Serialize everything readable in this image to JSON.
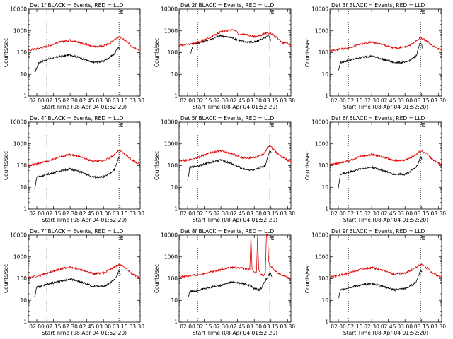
{
  "page": {
    "title": ""
  },
  "common": {
    "subtitle": "BLACK = Events, RED = LLD",
    "xlabel": "Start Time (08-Apr-04 01:52:20)",
    "ylabel": "Counts/sec",
    "x_ticks": [
      "02:00",
      "02:15",
      "02:30",
      "02:45",
      "03:00",
      "03:15",
      "03:30"
    ],
    "y_ticks": [
      "1",
      "10",
      "100",
      "1000",
      "10000"
    ],
    "flag_label": "E",
    "colors": {
      "events": "#000000",
      "lld": "#dd0000",
      "axis": "#000000"
    }
  },
  "chart_data": [
    {
      "type": "line",
      "title": "Det 1f BLACK = Events, RED = LLD",
      "xlabel": "Start Time (08-Apr-04 01:52:20)",
      "ylabel": "Counts/sec",
      "xlim": [
        "01:52:20",
        "03:33:00"
      ],
      "ylim": [
        1,
        10000
      ],
      "y_scale": "log",
      "markers": [
        "02:09:00",
        "03:14:00"
      ],
      "flags": [
        "03:15:00"
      ],
      "series": [
        {
          "name": "Events",
          "color": "#000000",
          "x": [
            "01:58:00",
            "02:02:00",
            "02:10:00",
            "02:20:00",
            "02:30:00",
            "02:40:00",
            "02:50:00",
            "03:00:00",
            "03:05:00",
            "03:10:00",
            "03:12:30",
            "03:13:30",
            "03:14:30"
          ],
          "y": [
            12,
            35,
            50,
            65,
            80,
            55,
            35,
            40,
            60,
            90,
            150,
            180,
            150
          ]
        },
        {
          "name": "LLD",
          "color": "#dd0000",
          "x": [
            "01:52:20",
            "02:00:00",
            "02:10:00",
            "02:20:00",
            "02:30:00",
            "02:40:00",
            "02:50:00",
            "03:00:00",
            "03:05:00",
            "03:10:00",
            "03:14:00",
            "03:20:00",
            "03:25:00",
            "03:33:00"
          ],
          "y": [
            130,
            150,
            200,
            300,
            380,
            280,
            190,
            200,
            260,
            380,
            550,
            350,
            200,
            130
          ]
        }
      ]
    },
    {
      "type": "line",
      "title": "Det 2f BLACK = Events, RED = LLD",
      "xlabel": "Start Time (08-Apr-04 01:52:20)",
      "ylabel": "Counts/sec",
      "xlim": [
        "01:52:20",
        "03:33:00"
      ],
      "ylim": [
        1,
        10000
      ],
      "y_scale": "log",
      "markers": [
        "02:09:00",
        "03:14:00"
      ],
      "flags": [
        "03:15:00"
      ],
      "series": [
        {
          "name": "Events",
          "color": "#000000",
          "x": [
            "02:03:00",
            "02:05:00",
            "02:10:00",
            "02:20:00",
            "02:30:00",
            "02:40:00",
            "02:50:00",
            "03:00:00",
            "03:05:00",
            "03:10:00",
            "03:13:00",
            "03:15:00"
          ],
          "y": [
            100,
            250,
            280,
            400,
            600,
            480,
            320,
            300,
            380,
            500,
            600,
            350
          ]
        },
        {
          "name": "LLD",
          "color": "#dd0000",
          "x": [
            "01:52:20",
            "02:00:00",
            "02:10:00",
            "02:20:00",
            "02:30:00",
            "02:40:00",
            "02:44:00",
            "02:46:00",
            "02:50:00",
            "03:00:00",
            "03:05:00",
            "03:10:00",
            "03:14:00",
            "03:20:00",
            "03:25:00",
            "03:33:00"
          ],
          "y": [
            220,
            240,
            300,
            500,
            900,
            1100,
            1000,
            650,
            700,
            550,
            600,
            750,
            800,
            500,
            300,
            230
          ]
        }
      ]
    },
    {
      "type": "line",
      "title": "Det 3f BLACK = Events, RED = LLD",
      "xlabel": "Start Time (08-Apr-04 01:52:20)",
      "ylabel": "Counts/sec",
      "xlim": [
        "01:52:20",
        "03:33:00"
      ],
      "ylim": [
        1,
        10000
      ],
      "y_scale": "log",
      "markers": [
        "02:09:00",
        "03:14:00"
      ],
      "flags": [
        "03:15:00"
      ],
      "series": [
        {
          "name": "Events",
          "color": "#000000",
          "x": [
            "02:00:00",
            "02:02:00",
            "02:10:00",
            "02:20:00",
            "02:30:00",
            "02:40:00",
            "02:50:00",
            "03:00:00",
            "03:05:00",
            "03:10:00",
            "03:12:00",
            "03:13:30",
            "03:14:30",
            "03:16:00"
          ],
          "y": [
            15,
            35,
            45,
            60,
            70,
            50,
            35,
            35,
            45,
            70,
            150,
            300,
            280,
            140
          ]
        },
        {
          "name": "LLD",
          "color": "#dd0000",
          "x": [
            "01:52:20",
            "02:00:00",
            "02:10:00",
            "02:20:00",
            "02:30:00",
            "02:40:00",
            "02:50:00",
            "03:00:00",
            "03:05:00",
            "03:10:00",
            "03:14:00",
            "03:20:00",
            "03:25:00",
            "03:33:00"
          ],
          "y": [
            120,
            140,
            170,
            240,
            300,
            230,
            160,
            180,
            230,
            330,
            500,
            330,
            200,
            130
          ]
        }
      ]
    },
    {
      "type": "line",
      "title": "Det 4f BLACK = Events, RED = LLD",
      "xlabel": "Start Time (08-Apr-04 01:52:20)",
      "ylabel": "Counts/sec",
      "xlim": [
        "01:52:20",
        "03:33:00"
      ],
      "ylim": [
        1,
        10000
      ],
      "y_scale": "log",
      "markers": [
        "02:09:00",
        "03:14:00"
      ],
      "flags": [
        "03:15:00"
      ],
      "series": [
        {
          "name": "Events",
          "color": "#000000",
          "x": [
            "01:58:00",
            "02:00:00",
            "02:10:00",
            "02:20:00",
            "02:30:00",
            "02:40:00",
            "02:50:00",
            "03:00:00",
            "03:05:00",
            "03:10:00",
            "03:12:30",
            "03:14:00",
            "03:15:00"
          ],
          "y": [
            8,
            30,
            40,
            55,
            70,
            50,
            30,
            30,
            40,
            70,
            150,
            250,
            200
          ]
        },
        {
          "name": "LLD",
          "color": "#dd0000",
          "x": [
            "01:52:20",
            "02:00:00",
            "02:10:00",
            "02:20:00",
            "02:30:00",
            "02:40:00",
            "02:50:00",
            "03:00:00",
            "03:05:00",
            "03:10:00",
            "03:14:00",
            "03:20:00",
            "03:25:00",
            "03:33:00"
          ],
          "y": [
            100,
            120,
            160,
            250,
            320,
            240,
            160,
            170,
            220,
            320,
            500,
            320,
            190,
            110
          ]
        }
      ]
    },
    {
      "type": "line",
      "title": "Det 5f BLACK = Events, RED = LLD",
      "xlabel": "Start Time (08-Apr-04 01:52:20)",
      "ylabel": "Counts/sec",
      "xlim": [
        "01:52:20",
        "03:33:00"
      ],
      "ylim": [
        1,
        10000
      ],
      "y_scale": "log",
      "markers": [
        "02:09:00",
        "03:14:00"
      ],
      "flags": [
        "03:15:00"
      ],
      "series": [
        {
          "name": "Events",
          "color": "#000000",
          "x": [
            "02:00:00",
            "02:02:00",
            "02:10:00",
            "02:20:00",
            "02:30:00",
            "02:40:00",
            "02:50:00",
            "03:00:00",
            "03:05:00",
            "03:10:00",
            "03:12:00",
            "03:14:00",
            "03:15:30"
          ],
          "y": [
            20,
            80,
            100,
            140,
            180,
            120,
            70,
            60,
            80,
            100,
            250,
            500,
            400
          ]
        },
        {
          "name": "LLD",
          "color": "#dd0000",
          "x": [
            "01:52:20",
            "02:00:00",
            "02:10:00",
            "02:20:00",
            "02:30:00",
            "02:40:00",
            "02:50:00",
            "03:00:00",
            "03:05:00",
            "03:10:00",
            "03:12:00",
            "03:14:00",
            "03:20:00",
            "03:25:00",
            "03:33:00"
          ],
          "y": [
            170,
            180,
            240,
            380,
            480,
            350,
            230,
            230,
            280,
            400,
            700,
            850,
            400,
            250,
            150
          ]
        }
      ]
    },
    {
      "type": "line",
      "title": "Det 6f BLACK = Events, RED = LLD",
      "xlabel": "Start Time (08-Apr-04 01:52:20)",
      "ylabel": "Counts/sec",
      "xlim": [
        "01:52:20",
        "03:33:00"
      ],
      "ylim": [
        1,
        10000
      ],
      "y_scale": "log",
      "markers": [
        "02:09:00",
        "03:14:00"
      ],
      "flags": [
        "03:15:00"
      ],
      "series": [
        {
          "name": "Events",
          "color": "#000000",
          "x": [
            "02:00:00",
            "02:02:00",
            "02:10:00",
            "02:20:00",
            "02:30:00",
            "02:40:00",
            "02:50:00",
            "03:00:00",
            "03:05:00",
            "03:10:00",
            "03:12:30",
            "03:14:00",
            "03:15:30"
          ],
          "y": [
            10,
            40,
            50,
            70,
            85,
            60,
            40,
            40,
            55,
            80,
            150,
            250,
            200
          ]
        },
        {
          "name": "LLD",
          "color": "#dd0000",
          "x": [
            "01:52:20",
            "02:00:00",
            "02:10:00",
            "02:20:00",
            "02:30:00",
            "02:40:00",
            "02:50:00",
            "03:00:00",
            "03:05:00",
            "03:10:00",
            "03:14:00",
            "03:20:00",
            "03:25:00",
            "03:33:00"
          ],
          "y": [
            110,
            130,
            170,
            260,
            330,
            250,
            170,
            180,
            230,
            330,
            500,
            320,
            190,
            110
          ]
        }
      ]
    },
    {
      "type": "line",
      "title": "Det 7f BLACK = Events, RED = LLD",
      "xlabel": "Start Time (08-Apr-04 01:52:20)",
      "ylabel": "Counts/sec",
      "xlim": [
        "01:52:20",
        "03:33:00"
      ],
      "ylim": [
        1,
        10000
      ],
      "y_scale": "log",
      "markers": [
        "02:09:00",
        "03:14:00"
      ],
      "flags": [
        "03:15:00"
      ],
      "series": [
        {
          "name": "Events",
          "color": "#000000",
          "x": [
            "01:58:00",
            "02:00:00",
            "02:10:00",
            "02:20:00",
            "02:30:00",
            "02:40:00",
            "02:50:00",
            "03:00:00",
            "03:05:00",
            "03:10:00",
            "03:12:30",
            "03:14:00",
            "03:15:30"
          ],
          "y": [
            15,
            40,
            55,
            75,
            95,
            70,
            45,
            45,
            60,
            90,
            150,
            220,
            150
          ]
        },
        {
          "name": "LLD",
          "color": "#dd0000",
          "x": [
            "01:52:20",
            "02:00:00",
            "02:10:00",
            "02:20:00",
            "02:30:00",
            "02:40:00",
            "02:50:00",
            "03:00:00",
            "03:05:00",
            "03:10:00",
            "03:14:00",
            "03:20:00",
            "03:25:00",
            "03:33:00"
          ],
          "y": [
            110,
            130,
            180,
            270,
            340,
            260,
            170,
            180,
            240,
            340,
            480,
            300,
            170,
            110
          ]
        }
      ]
    },
    {
      "type": "line",
      "title": "Det 8f BLACK = Events, RED = LLD",
      "xlabel": "Start Time (08-Apr-04 01:52:20)",
      "ylabel": "Counts/sec",
      "xlim": [
        "01:52:20",
        "03:33:00"
      ],
      "ylim": [
        1,
        10000
      ],
      "y_scale": "log",
      "markers": [
        "02:09:00",
        "03:14:00"
      ],
      "flags": [
        "03:15:00"
      ],
      "series": [
        {
          "name": "Events",
          "color": "#000000",
          "x": [
            "02:00:00",
            "02:02:00",
            "02:10:00",
            "02:20:00",
            "02:30:00",
            "02:40:00",
            "02:50:00",
            "02:55:00",
            "03:00:00",
            "03:05:00",
            "03:07:00",
            "03:08:00",
            "03:12:00",
            "03:14:00",
            "03:16:00"
          ],
          "y": [
            12,
            25,
            30,
            40,
            50,
            70,
            60,
            50,
            35,
            30,
            40,
            60,
            110,
            180,
            130
          ]
        },
        {
          "name": "LLD",
          "color": "#dd0000",
          "x": [
            "01:52:20",
            "02:00:00",
            "02:10:00",
            "02:20:00",
            "02:30:00",
            "02:40:00",
            "02:50:00",
            "02:56:00",
            "02:57:00",
            "02:58:00",
            "03:00:00",
            "03:02:00",
            "03:03:00",
            "03:04:00",
            "03:06:00",
            "03:08:00",
            "03:10:00",
            "03:11:00",
            "03:12:00",
            "03:13:00",
            "03:14:00",
            "03:20:00",
            "03:25:00",
            "03:33:00"
          ],
          "y": [
            120,
            130,
            150,
            200,
            260,
            330,
            300,
            260,
            10000,
            280,
            180,
            200,
            10000,
            250,
            150,
            140,
            180,
            10000,
            10000,
            600,
            400,
            200,
            140,
            100
          ]
        }
      ]
    },
    {
      "type": "line",
      "title": "Det 9f BLACK = Events, RED = LLD",
      "xlabel": "Start Time (08-Apr-04 01:52:20)",
      "ylabel": "Counts/sec",
      "xlim": [
        "01:52:20",
        "03:33:00"
      ],
      "ylim": [
        1,
        10000
      ],
      "y_scale": "log",
      "markers": [
        "02:09:00",
        "03:14:00"
      ],
      "flags": [
        "03:15:00"
      ],
      "series": [
        {
          "name": "Events",
          "color": "#000000",
          "x": [
            "02:00:00",
            "02:02:00",
            "02:10:00",
            "02:20:00",
            "02:30:00",
            "02:40:00",
            "02:50:00",
            "03:00:00",
            "03:05:00",
            "03:10:00",
            "03:12:30",
            "03:14:00",
            "03:15:30"
          ],
          "y": [
            12,
            30,
            40,
            50,
            60,
            45,
            30,
            35,
            45,
            70,
            150,
            250,
            200
          ]
        },
        {
          "name": "LLD",
          "color": "#dd0000",
          "x": [
            "01:52:20",
            "02:00:00",
            "02:10:00",
            "02:20:00",
            "02:30:00",
            "02:40:00",
            "02:50:00",
            "03:00:00",
            "03:05:00",
            "03:10:00",
            "03:14:00",
            "03:20:00",
            "03:25:00",
            "03:33:00"
          ],
          "y": [
            120,
            140,
            180,
            260,
            320,
            240,
            160,
            180,
            230,
            330,
            480,
            300,
            180,
            110
          ]
        }
      ]
    }
  ]
}
